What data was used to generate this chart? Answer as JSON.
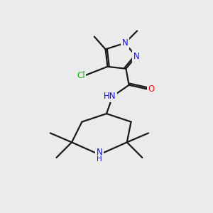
{
  "bg_color": "#ebebeb",
  "bond_color": "#1a1a1a",
  "bond_width": 1.6,
  "atom_colors": {
    "N": "#1010ee",
    "O": "#ee1010",
    "Cl": "#10aa10",
    "H": "#888888"
  },
  "font_size": 8.5
}
